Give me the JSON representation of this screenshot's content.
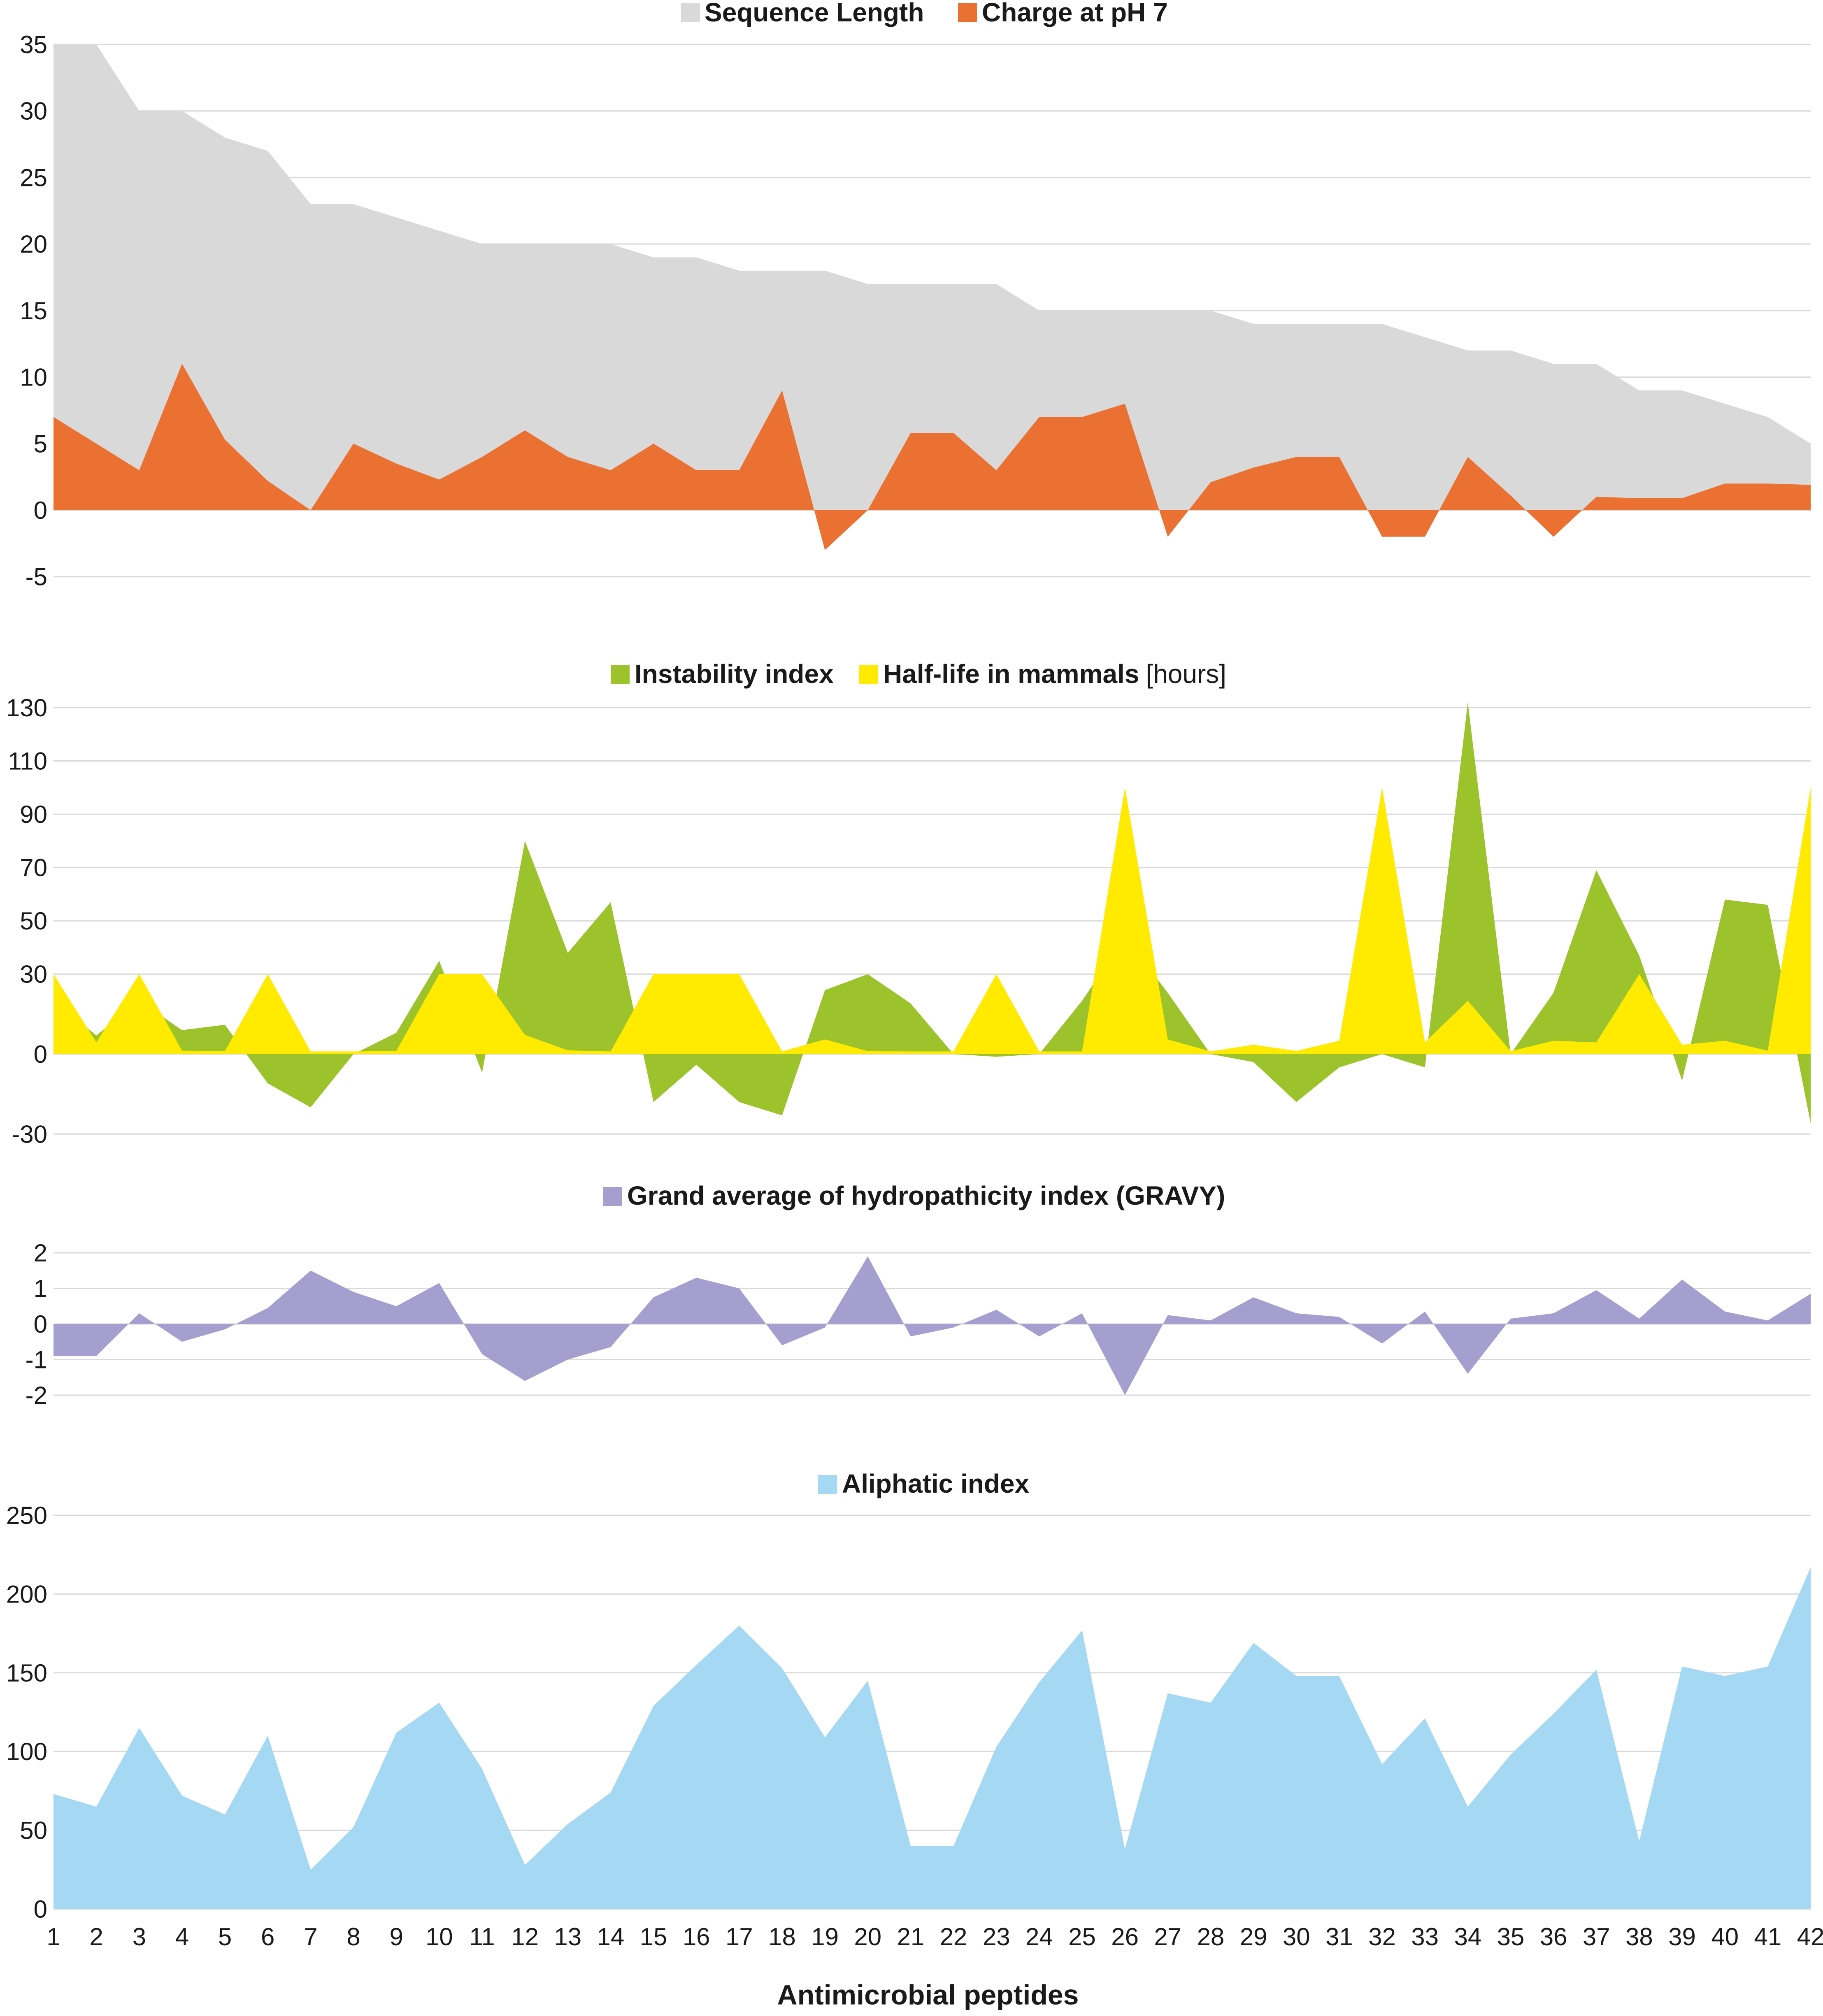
{
  "chart_data": [
    {
      "type": "area",
      "id": "panel1",
      "ylim": [
        -5,
        35
      ],
      "yticks": [
        "35",
        "30",
        "25",
        "20",
        "15",
        "10",
        "5",
        "0",
        "-5"
      ],
      "series": [
        {
          "name": "Sequence Length",
          "color": "#d9d9d9",
          "values": [
            35,
            35,
            30,
            30,
            28,
            27,
            23,
            23,
            22,
            21,
            20,
            20,
            20,
            20,
            19,
            19,
            18,
            18,
            18,
            17,
            17,
            17,
            17,
            15,
            15,
            15,
            15,
            15,
            14,
            14,
            14,
            14,
            13,
            12,
            12,
            11,
            11,
            9,
            9,
            8,
            7,
            5
          ]
        },
        {
          "name": "Charge at pH 7",
          "color": "#ea7131",
          "values": [
            7,
            5,
            3,
            11,
            5.3,
            2.2,
            0,
            5,
            3.5,
            2.3,
            4,
            6,
            4,
            3,
            5,
            3,
            3,
            9,
            -3,
            0,
            5.8,
            5.8,
            3,
            7,
            7,
            8,
            -2,
            2.1,
            3.2,
            4,
            4,
            -2,
            -2,
            4,
            1.1,
            -2,
            1,
            0.9,
            0.9,
            2,
            2,
            1.9
          ]
        }
      ]
    },
    {
      "type": "area",
      "id": "panel2",
      "ylim": [
        -30,
        135
      ],
      "yticks": [
        "130",
        "110",
        "90",
        "70",
        "50",
        "30",
        "0",
        "-30"
      ],
      "legend_suffix": "[hours]",
      "series": [
        {
          "name": "Instability index",
          "color": "#9cc32b",
          "values": [
            20,
            7,
            20,
            9,
            11,
            -11,
            -20,
            0,
            8,
            35,
            -7,
            80,
            38,
            57,
            -18,
            -4,
            -18,
            -23,
            24,
            30,
            19,
            0,
            -1,
            0,
            20,
            44,
            23,
            0,
            -3,
            -18,
            -5,
            0,
            -5,
            132,
            0,
            23,
            69,
            37,
            -10,
            58,
            56,
            -26
          ]
        },
        {
          "name": "Half-life in mammals",
          "color": "#ffea00",
          "values": [
            30,
            4.4,
            30,
            1.3,
            1.1,
            30,
            1,
            1,
            1.2,
            30,
            30,
            7.2,
            1.4,
            1,
            30,
            30,
            30,
            1,
            5.5,
            1.1,
            1,
            1,
            30,
            1,
            1,
            100,
            5.5,
            1,
            3.5,
            1.2,
            5,
            100,
            4.4,
            20,
            1.1,
            5,
            4.4,
            30,
            3.5,
            5,
            1.3,
            100
          ]
        }
      ]
    },
    {
      "type": "area",
      "id": "panel3",
      "ylim": [
        -2,
        2
      ],
      "yticks": [
        "2",
        "1",
        "0",
        "-1",
        "-2"
      ],
      "series": [
        {
          "name": "Grand average of hydropathicity index (GRAVY)",
          "color": "#a59fcf",
          "values": [
            -0.9,
            -0.9,
            0.3,
            -0.5,
            -0.15,
            0.45,
            1.5,
            0.9,
            0.5,
            1.15,
            -0.85,
            -1.6,
            -1.0,
            -0.65,
            0.75,
            1.3,
            1.0,
            -0.6,
            -0.1,
            1.9,
            -0.35,
            -0.1,
            0.4,
            -0.35,
            0.3,
            -2.0,
            0.25,
            0.1,
            0.75,
            0.3,
            0.2,
            -0.55,
            0.35,
            -1.4,
            0.15,
            0.3,
            0.95,
            0.15,
            1.25,
            0.35,
            0.1,
            0.85
          ]
        }
      ]
    },
    {
      "type": "area",
      "id": "panel4",
      "ylim": [
        0,
        250
      ],
      "yticks": [
        "250",
        "200",
        "150",
        "100",
        "50",
        "0"
      ],
      "series": [
        {
          "name": "Aliphatic index",
          "color": "#a4d8f3",
          "values": [
            73,
            65,
            115,
            72,
            60,
            110,
            25,
            52,
            112,
            131,
            89,
            28,
            54,
            74,
            129,
            155,
            180,
            153,
            109,
            145,
            40,
            40,
            103,
            144,
            177,
            38,
            137,
            131,
            169,
            148,
            148,
            92,
            121,
            65,
            98,
            124,
            152,
            43,
            154,
            148,
            154,
            217
          ]
        }
      ]
    }
  ],
  "x_axis": {
    "title": "Antimicrobial peptides",
    "ticks": [
      "1",
      "2",
      "3",
      "4",
      "5",
      "6",
      "7",
      "8",
      "9",
      "10",
      "11",
      "12",
      "13",
      "14",
      "15",
      "16",
      "17",
      "18",
      "19",
      "20",
      "21",
      "22",
      "23",
      "24",
      "25",
      "26",
      "27",
      "28",
      "29",
      "30",
      "31",
      "32",
      "33",
      "34",
      "35",
      "36",
      "37",
      "38",
      "39",
      "40",
      "41",
      "42"
    ]
  }
}
